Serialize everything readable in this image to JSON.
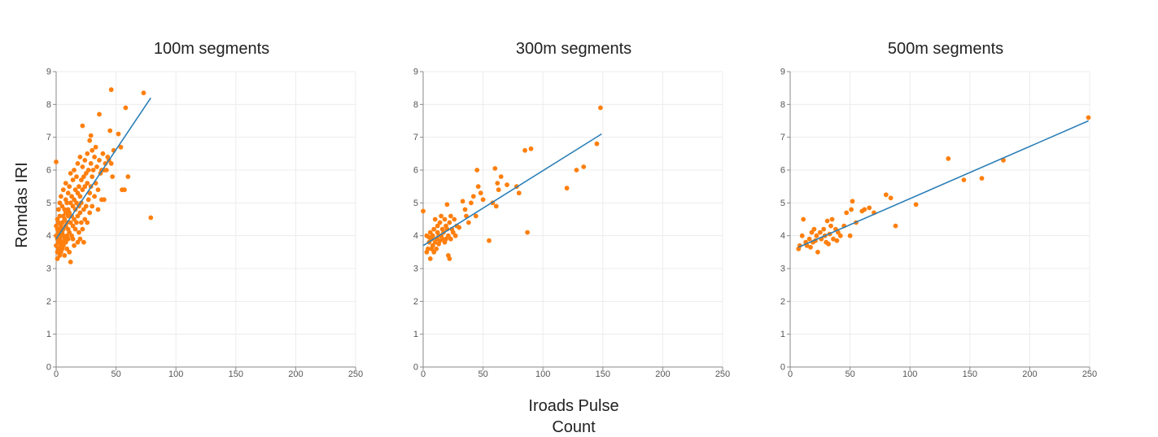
{
  "ylabel": "Romdas IRI",
  "xlabel_lines": [
    "Iroads Pulse",
    "Count"
  ],
  "colors": {
    "points": "#ff7f0e",
    "fit_line": "#2c7fb8",
    "grid": "#ececec",
    "axis": "#888888"
  },
  "chart_data": [
    {
      "type": "scatter",
      "title": "100m segments",
      "xlim": [
        0,
        250
      ],
      "ylim": [
        0,
        9
      ],
      "xticks": [
        0,
        50,
        100,
        150,
        200,
        250
      ],
      "yticks": [
        0,
        1,
        2,
        3,
        4,
        5,
        6,
        7,
        8,
        9
      ],
      "grid": true,
      "fit_line": {
        "x": [
          0,
          79
        ],
        "y": [
          3.9,
          8.2
        ]
      },
      "points": [
        [
          0,
          6.25
        ],
        [
          0,
          4.3
        ],
        [
          0,
          4.0
        ],
        [
          0,
          3.7
        ],
        [
          1,
          4.2
        ],
        [
          1,
          3.5
        ],
        [
          1,
          3.9
        ],
        [
          1,
          4.5
        ],
        [
          1,
          3.3
        ],
        [
          2,
          4.1
        ],
        [
          2,
          3.6
        ],
        [
          2,
          4.8
        ],
        [
          2,
          3.8
        ],
        [
          2,
          4.4
        ],
        [
          3,
          4.2
        ],
        [
          3,
          3.4
        ],
        [
          3,
          4.6
        ],
        [
          3,
          3.9
        ],
        [
          3,
          5.0
        ],
        [
          4,
          4.3
        ],
        [
          4,
          3.7
        ],
        [
          4,
          4.0
        ],
        [
          4,
          5.2
        ],
        [
          4,
          3.5
        ],
        [
          5,
          4.4
        ],
        [
          5,
          3.6
        ],
        [
          5,
          4.9
        ],
        [
          5,
          4.1
        ],
        [
          5,
          3.8
        ],
        [
          6,
          4.6
        ],
        [
          6,
          4.2
        ],
        [
          6,
          5.4
        ],
        [
          6,
          3.7
        ],
        [
          6,
          4.0
        ],
        [
          7,
          4.5
        ],
        [
          7,
          3.9
        ],
        [
          7,
          4.8
        ],
        [
          7,
          3.4
        ],
        [
          8,
          5.1
        ],
        [
          8,
          4.3
        ],
        [
          8,
          4.7
        ],
        [
          8,
          3.8
        ],
        [
          8,
          5.6
        ],
        [
          9,
          4.4
        ],
        [
          9,
          4.0
        ],
        [
          9,
          5.0
        ],
        [
          9,
          3.6
        ],
        [
          10,
          4.8
        ],
        [
          10,
          4.2
        ],
        [
          10,
          5.3
        ],
        [
          10,
          3.9
        ],
        [
          10,
          4.6
        ],
        [
          11,
          5.5
        ],
        [
          11,
          4.1
        ],
        [
          11,
          4.7
        ],
        [
          11,
          3.5
        ],
        [
          12,
          5.9
        ],
        [
          12,
          4.4
        ],
        [
          12,
          5.0
        ],
        [
          12,
          3.2
        ],
        [
          13,
          4.6
        ],
        [
          13,
          5.2
        ],
        [
          13,
          4.0
        ],
        [
          14,
          5.7
        ],
        [
          14,
          4.3
        ],
        [
          14,
          4.9
        ],
        [
          14,
          3.9
        ],
        [
          15,
          6.0
        ],
        [
          15,
          4.5
        ],
        [
          15,
          5.1
        ],
        [
          15,
          3.7
        ],
        [
          16,
          5.4
        ],
        [
          16,
          4.8
        ],
        [
          16,
          4.2
        ],
        [
          17,
          5.8
        ],
        [
          17,
          4.4
        ],
        [
          17,
          5.0
        ],
        [
          18,
          6.2
        ],
        [
          18,
          4.6
        ],
        [
          18,
          5.3
        ],
        [
          18,
          3.8
        ],
        [
          19,
          5.5
        ],
        [
          19,
          4.9
        ],
        [
          19,
          4.1
        ],
        [
          20,
          6.4
        ],
        [
          20,
          5.2
        ],
        [
          20,
          4.7
        ],
        [
          20,
          3.9
        ],
        [
          21,
          5.7
        ],
        [
          21,
          4.4
        ],
        [
          21,
          5.0
        ],
        [
          22,
          7.35
        ],
        [
          22,
          6.1
        ],
        [
          22,
          5.4
        ],
        [
          22,
          4.2
        ],
        [
          23,
          5.8
        ],
        [
          23,
          4.8
        ],
        [
          23,
          3.8
        ],
        [
          24,
          6.3
        ],
        [
          24,
          5.5
        ],
        [
          24,
          4.5
        ],
        [
          25,
          5.9
        ],
        [
          25,
          4.9
        ],
        [
          26,
          6.5
        ],
        [
          26,
          5.6
        ],
        [
          26,
          4.4
        ],
        [
          27,
          5.1
        ],
        [
          27,
          6.0
        ],
        [
          28,
          6.9
        ],
        [
          28,
          5.3
        ],
        [
          28,
          4.7
        ],
        [
          29,
          7.05
        ],
        [
          29,
          6.2
        ],
        [
          29,
          5.5
        ],
        [
          30,
          6.6
        ],
        [
          30,
          5.8
        ],
        [
          30,
          4.9
        ],
        [
          31,
          6.0
        ],
        [
          32,
          5.2
        ],
        [
          32,
          6.4
        ],
        [
          33,
          6.7
        ],
        [
          33,
          5.6
        ],
        [
          34,
          6.1
        ],
        [
          35,
          5.4
        ],
        [
          35,
          4.8
        ],
        [
          36,
          7.7
        ],
        [
          36,
          6.3
        ],
        [
          37,
          5.9
        ],
        [
          38,
          6.0
        ],
        [
          38,
          5.1
        ],
        [
          39,
          6.5
        ],
        [
          40,
          6.0
        ],
        [
          40,
          5.1
        ],
        [
          41,
          6.2
        ],
        [
          42,
          6.0
        ],
        [
          43,
          6.4
        ],
        [
          44,
          6.3
        ],
        [
          45,
          7.2
        ],
        [
          46,
          8.45
        ],
        [
          46,
          6.2
        ],
        [
          47,
          5.8
        ],
        [
          48,
          6.6
        ],
        [
          52,
          7.1
        ],
        [
          54,
          6.7
        ],
        [
          55,
          5.4
        ],
        [
          57,
          5.4
        ],
        [
          58,
          7.9
        ],
        [
          60,
          5.8
        ],
        [
          73,
          8.35
        ],
        [
          79,
          4.55
        ]
      ]
    },
    {
      "type": "scatter",
      "title": "300m segments",
      "xlim": [
        0,
        250
      ],
      "ylim": [
        0,
        9
      ],
      "xticks": [
        0,
        50,
        100,
        150,
        200,
        250
      ],
      "yticks": [
        0,
        1,
        2,
        3,
        4,
        5,
        6,
        7,
        8,
        9
      ],
      "grid": true,
      "fit_line": {
        "x": [
          0,
          149
        ],
        "y": [
          3.7,
          7.1
        ]
      },
      "points": [
        [
          0,
          4.75
        ],
        [
          3,
          3.5
        ],
        [
          3,
          4.0
        ],
        [
          4,
          3.6
        ],
        [
          5,
          3.8
        ],
        [
          5,
          3.95
        ],
        [
          6,
          3.3
        ],
        [
          6,
          4.1
        ],
        [
          7,
          3.6
        ],
        [
          7,
          3.9
        ],
        [
          8,
          4.0
        ],
        [
          8,
          3.7
        ],
        [
          9,
          3.5
        ],
        [
          9,
          4.2
        ],
        [
          10,
          3.8
        ],
        [
          10,
          4.5
        ],
        [
          11,
          3.9
        ],
        [
          11,
          3.6
        ],
        [
          12,
          4.1
        ],
        [
          12,
          4.3
        ],
        [
          13,
          3.75
        ],
        [
          13,
          4.0
        ],
        [
          14,
          4.4
        ],
        [
          14,
          3.85
        ],
        [
          15,
          4.0
        ],
        [
          15,
          4.6
        ],
        [
          16,
          3.9
        ],
        [
          16,
          4.2
        ],
        [
          17,
          4.1
        ],
        [
          18,
          3.8
        ],
        [
          18,
          4.5
        ],
        [
          19,
          4.3
        ],
        [
          19,
          3.9
        ],
        [
          20,
          4.2
        ],
        [
          20,
          4.95
        ],
        [
          21,
          3.4
        ],
        [
          21,
          4.0
        ],
        [
          22,
          4.4
        ],
        [
          22,
          3.3
        ],
        [
          23,
          3.9
        ],
        [
          23,
          4.6
        ],
        [
          24,
          4.2
        ],
        [
          25,
          4.1
        ],
        [
          26,
          4.5
        ],
        [
          27,
          4.0
        ],
        [
          28,
          4.3
        ],
        [
          30,
          4.25
        ],
        [
          33,
          5.05
        ],
        [
          35,
          4.8
        ],
        [
          36,
          4.6
        ],
        [
          38,
          4.4
        ],
        [
          40,
          5.0
        ],
        [
          42,
          5.2
        ],
        [
          44,
          4.6
        ],
        [
          45,
          6.0
        ],
        [
          46,
          5.5
        ],
        [
          48,
          5.3
        ],
        [
          50,
          5.1
        ],
        [
          55,
          3.85
        ],
        [
          58,
          5.0
        ],
        [
          60,
          6.05
        ],
        [
          61,
          4.9
        ],
        [
          62,
          5.6
        ],
        [
          63,
          5.4
        ],
        [
          65,
          5.8
        ],
        [
          70,
          5.55
        ],
        [
          78,
          5.5
        ],
        [
          80,
          5.3
        ],
        [
          85,
          6.6
        ],
        [
          87,
          4.1
        ],
        [
          90,
          6.65
        ],
        [
          120,
          5.45
        ],
        [
          128,
          6.0
        ],
        [
          134,
          6.1
        ],
        [
          145,
          6.8
        ],
        [
          148,
          7.9
        ]
      ]
    },
    {
      "type": "scatter",
      "title": "500m segments",
      "xlim": [
        0,
        250
      ],
      "ylim": [
        0,
        9
      ],
      "xticks": [
        0,
        50,
        100,
        150,
        200,
        250
      ],
      "yticks": [
        0,
        1,
        2,
        3,
        4,
        5,
        6,
        7,
        8,
        9
      ],
      "grid": true,
      "fit_line": {
        "x": [
          7,
          249
        ],
        "y": [
          3.65,
          7.5
        ]
      },
      "points": [
        [
          7,
          3.6
        ],
        [
          8,
          3.7
        ],
        [
          10,
          4.0
        ],
        [
          11,
          4.5
        ],
        [
          13,
          3.8
        ],
        [
          14,
          3.7
        ],
        [
          16,
          3.9
        ],
        [
          17,
          3.65
        ],
        [
          18,
          4.1
        ],
        [
          19,
          3.8
        ],
        [
          20,
          4.2
        ],
        [
          21,
          3.85
        ],
        [
          22,
          4.0
        ],
        [
          23,
          3.5
        ],
        [
          25,
          4.1
        ],
        [
          26,
          3.9
        ],
        [
          28,
          4.2
        ],
        [
          29,
          4.0
        ],
        [
          30,
          3.8
        ],
        [
          31,
          4.45
        ],
        [
          32,
          3.75
        ],
        [
          33,
          4.05
        ],
        [
          34,
          4.3
        ],
        [
          35,
          4.5
        ],
        [
          36,
          3.9
        ],
        [
          38,
          4.2
        ],
        [
          39,
          3.85
        ],
        [
          40,
          4.1
        ],
        [
          42,
          4.0
        ],
        [
          45,
          4.3
        ],
        [
          47,
          4.7
        ],
        [
          50,
          4.0
        ],
        [
          51,
          4.8
        ],
        [
          52,
          5.05
        ],
        [
          55,
          4.4
        ],
        [
          60,
          4.75
        ],
        [
          62,
          4.8
        ],
        [
          66,
          4.85
        ],
        [
          70,
          4.7
        ],
        [
          80,
          5.25
        ],
        [
          84,
          5.15
        ],
        [
          88,
          4.3
        ],
        [
          105,
          4.95
        ],
        [
          132,
          6.35
        ],
        [
          145,
          5.7
        ],
        [
          160,
          5.75
        ],
        [
          178,
          6.3
        ],
        [
          249,
          7.6
        ]
      ]
    }
  ]
}
